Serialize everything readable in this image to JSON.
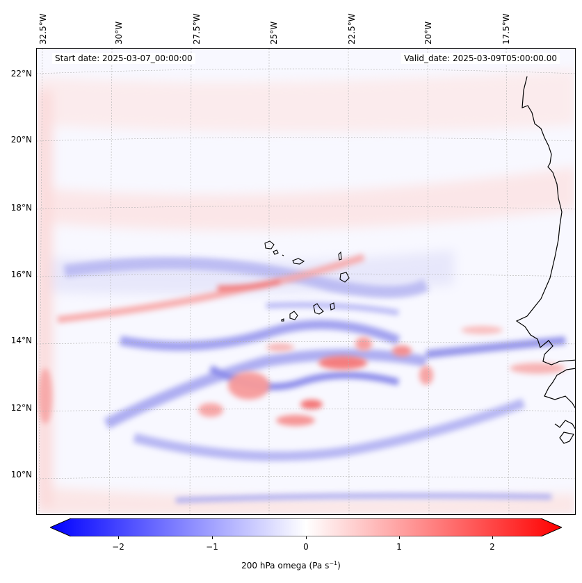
{
  "map": {
    "start_date": "Start date: 2025-03-07_00:00:00",
    "valid_date": "Valid_date: 2025-03-09T05:00:00.00",
    "lon_labels": [
      "32.5°W",
      "30°W",
      "27.5°W",
      "25°W",
      "22.5°W",
      "20°W",
      "17.5°W"
    ],
    "lat_labels": [
      "22°N",
      "20°N",
      "18°N",
      "16°N",
      "14°N",
      "12°N",
      "10°N"
    ],
    "lon_values": [
      -32.5,
      -30,
      -27.5,
      -25,
      -22.5,
      -20,
      -17.5
    ],
    "lat_values": [
      22,
      20,
      18,
      16,
      14,
      12,
      10
    ],
    "extent": {
      "lon_min": -33.0,
      "lon_max": -15.5,
      "lat_min": 8.9,
      "lat_max": 22.8
    },
    "field_name": "200 hPa omega",
    "colormap": "bwr",
    "coastline_color": "#000000"
  },
  "colorbar": {
    "ticks": [
      "−2",
      "−1",
      "0",
      "1",
      "2"
    ],
    "tick_values": [
      -2,
      -1,
      0,
      1,
      2
    ],
    "range": [
      -2.5,
      2.5
    ],
    "label_main": "200 hPa omega (Pa s",
    "label_sup": "−1",
    "label_end": ")",
    "colors": {
      "negative": "#0000ff",
      "neutral": "#ffffff",
      "positive": "#ff0000"
    }
  }
}
